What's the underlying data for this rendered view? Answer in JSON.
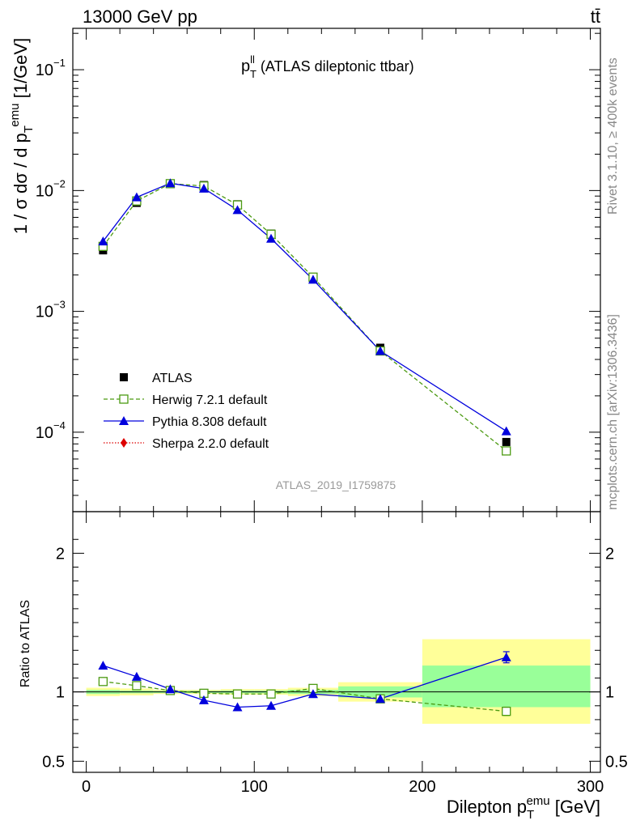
{
  "header": {
    "left": "13000 GeV pp",
    "right": "tt̄"
  },
  "side_labels": {
    "rivet": "Rivet 3.1.10, ≥ 400k events",
    "mcplots": "mcplots.cern.ch [arXiv:1306.3436]"
  },
  "chart_data": [
    {
      "type": "scatter",
      "title": "(ATLAS dileptonic ttbar)",
      "title_symbol": "p",
      "title_sup": "ll",
      "title_sub": "T",
      "ylabel": "1 / σ  dσ / d p_T^emu [1/GeV]",
      "y_scale": "log",
      "ylim": [
        2.2e-05,
        0.22
      ],
      "xlim": [
        -8,
        306
      ],
      "y_ticks": [
        {
          "value": 0.1,
          "base": "10",
          "exp": "−1"
        },
        {
          "value": 0.01,
          "base": "10",
          "exp": "−2"
        },
        {
          "value": 0.001,
          "base": "10",
          "exp": "−3"
        },
        {
          "value": 0.0001,
          "base": "10",
          "exp": "−4"
        }
      ],
      "watermark": "ATLAS_2019_I1759875",
      "legend_position": "bottom-left",
      "series": [
        {
          "name": "ATLAS",
          "color": "#000000",
          "marker": "filled-square",
          "x": [
            10,
            30,
            50,
            70,
            90,
            110,
            135,
            175,
            250
          ],
          "y": [
            0.0032,
            0.0079,
            0.0113,
            0.0111,
            0.0077,
            0.0044,
            0.00187,
            0.0005,
            8.3e-05
          ]
        },
        {
          "name": "Herwig 7.2.1 default",
          "color": "#4c9a12",
          "marker": "open-square",
          "line": "dashed",
          "x": [
            10,
            30,
            50,
            70,
            90,
            110,
            135,
            175,
            250
          ],
          "y": [
            0.00345,
            0.0082,
            0.0114,
            0.0109,
            0.0076,
            0.00435,
            0.00192,
            0.00047,
            7e-05
          ]
        },
        {
          "name": "Pythia 8.308 default",
          "color": "#0000dd",
          "marker": "filled-triangle",
          "line": "solid",
          "x": [
            10,
            30,
            50,
            70,
            90,
            110,
            135,
            175,
            250
          ],
          "y": [
            0.0038,
            0.0088,
            0.0115,
            0.0104,
            0.0069,
            0.004,
            0.00183,
            0.00047,
            0.000102
          ]
        },
        {
          "name": "Sherpa 2.2.0 default",
          "color": "#dd0000",
          "marker": "filled-diamond",
          "line": "dotted",
          "x": [],
          "y": []
        }
      ]
    },
    {
      "type": "scatter",
      "ylabel": "Ratio to ATLAS",
      "xlabel": "Dilepton p_T^emu [GeV]",
      "ylim": [
        0.42,
        2.3
      ],
      "xlim": [
        -8,
        306
      ],
      "x_ticks": [
        0,
        100,
        200,
        300
      ],
      "y_ticks": [
        0.5,
        1,
        2
      ],
      "reference_line": 1,
      "uncertainty_bands": [
        {
          "x": [
            0,
            20
          ],
          "stat": [
            0.985,
            1.015
          ],
          "total": [
            0.97,
            1.03
          ]
        },
        {
          "x": [
            20,
            40
          ],
          "stat": [
            0.99,
            1.01
          ],
          "total": [
            0.975,
            1.025
          ]
        },
        {
          "x": [
            40,
            60
          ],
          "stat": [
            0.992,
            1.008
          ],
          "total": [
            0.985,
            1.015
          ]
        },
        {
          "x": [
            60,
            80
          ],
          "stat": [
            0.992,
            1.008
          ],
          "total": [
            0.985,
            1.015
          ]
        },
        {
          "x": [
            80,
            100
          ],
          "stat": [
            0.99,
            1.01
          ],
          "total": [
            0.98,
            1.02
          ]
        },
        {
          "x": [
            100,
            120
          ],
          "stat": [
            0.99,
            1.01
          ],
          "total": [
            0.98,
            1.02
          ]
        },
        {
          "x": [
            120,
            150
          ],
          "stat": [
            0.985,
            1.015
          ],
          "total": [
            0.97,
            1.03
          ]
        },
        {
          "x": [
            150,
            200
          ],
          "stat": [
            0.96,
            1.04
          ],
          "total": [
            0.93,
            1.07
          ]
        },
        {
          "x": [
            200,
            300
          ],
          "stat": [
            0.89,
            1.19
          ],
          "total": [
            0.77,
            1.38
          ]
        }
      ],
      "series": [
        {
          "name": "Herwig 7.2.1 default",
          "color": "#4c9a12",
          "marker": "open-square",
          "line": "dashed",
          "x": [
            10,
            30,
            50,
            70,
            90,
            110,
            135,
            175,
            250
          ],
          "y": [
            1.075,
            1.045,
            1.01,
            0.99,
            0.985,
            0.985,
            1.025,
            0.95,
            0.86
          ],
          "yerr": [
            0,
            0,
            0,
            0,
            0,
            0,
            0,
            0,
            0.03
          ]
        },
        {
          "name": "Pythia 8.308 default",
          "color": "#0000dd",
          "marker": "filled-triangle",
          "line": "solid",
          "x": [
            10,
            30,
            50,
            70,
            90,
            110,
            135,
            175,
            250
          ],
          "y": [
            1.19,
            1.11,
            1.02,
            0.94,
            0.89,
            0.9,
            0.985,
            0.95,
            1.25
          ],
          "yerr": [
            0,
            0,
            0,
            0,
            0,
            0,
            0,
            0,
            0.04
          ]
        }
      ]
    }
  ]
}
